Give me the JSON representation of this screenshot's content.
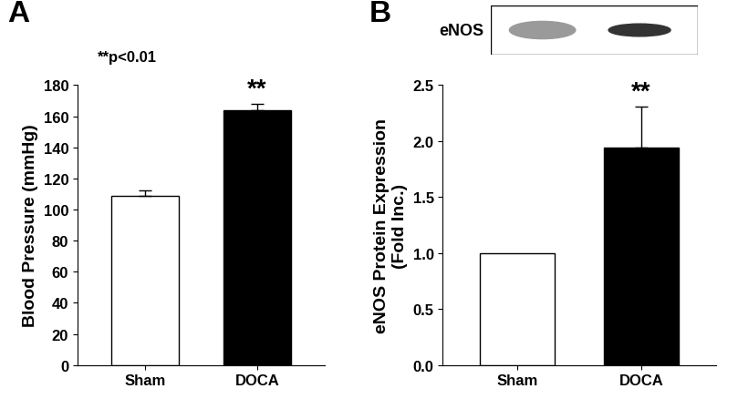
{
  "chart_data": [
    {
      "panel": "A",
      "type": "bar",
      "categories": [
        "Sham",
        "DOCA"
      ],
      "values": [
        109,
        164
      ],
      "errors": [
        3,
        4
      ],
      "colors": [
        "#ffffff",
        "#000000"
      ],
      "y_label": "Blood Pressure (mmHg)",
      "ylim": [
        0,
        180
      ],
      "yticks": [
        0,
        20,
        40,
        60,
        80,
        100,
        120,
        140,
        160,
        180
      ],
      "significance": [
        null,
        "**"
      ],
      "annotations": [
        "**p<0.01"
      ]
    },
    {
      "panel": "B",
      "type": "bar",
      "categories": [
        "Sham",
        "DOCA"
      ],
      "values": [
        1.0,
        1.94
      ],
      "errors": [
        null,
        0.37
      ],
      "colors": [
        "#ffffff",
        "#000000"
      ],
      "y_label": "eNOS Protein Expression\n(Fold Inc.)",
      "ylim": [
        0,
        2.5
      ],
      "yticks": [
        {
          "value": 0,
          "label": "0.0"
        },
        {
          "value": 0.5,
          "label": "0.5"
        },
        {
          "value": 1.0,
          "label": "1.0"
        },
        {
          "value": 1.5,
          "label": "1.5"
        },
        {
          "value": 2.0,
          "label": "2.0"
        },
        {
          "value": 2.5,
          "label": "2.5"
        }
      ],
      "significance": [
        null,
        "**"
      ],
      "blot": {
        "label": "eNOS"
      }
    }
  ]
}
